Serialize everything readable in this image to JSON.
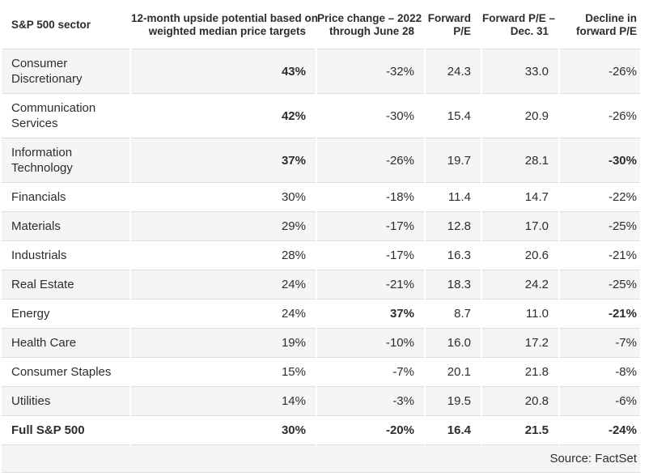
{
  "chart_data": {
    "type": "table",
    "columns": [
      {
        "key": "sector",
        "label": "S&P 500 sector",
        "align": "left"
      },
      {
        "key": "upside",
        "label": "12-month upside potential based on\nweighted median price targets",
        "align": "right"
      },
      {
        "key": "price_change",
        "label": "Price change – 2022\nthrough June 28",
        "align": "right"
      },
      {
        "key": "fwd_pe",
        "label": "Forward\nP/E",
        "align": "right"
      },
      {
        "key": "fwd_pe_dec31",
        "label": "Forward P/E –\nDec. 31",
        "align": "right"
      },
      {
        "key": "decline",
        "label": "Decline in\nforward P/E",
        "align": "right"
      }
    ],
    "rows": [
      {
        "sector": "Consumer Discretionary",
        "upside": "43%",
        "price_change": "-32%",
        "fwd_pe": "24.3",
        "fwd_pe_dec31": "33.0",
        "decline": "-26%",
        "bold": [
          "upside"
        ]
      },
      {
        "sector": "Communication Services",
        "upside": "42%",
        "price_change": "-30%",
        "fwd_pe": "15.4",
        "fwd_pe_dec31": "20.9",
        "decline": "-26%",
        "bold": [
          "upside"
        ]
      },
      {
        "sector": "Information Technology",
        "upside": "37%",
        "price_change": "-26%",
        "fwd_pe": "19.7",
        "fwd_pe_dec31": "28.1",
        "decline": "-30%",
        "bold": [
          "upside",
          "decline"
        ]
      },
      {
        "sector": "Financials",
        "upside": "30%",
        "price_change": "-18%",
        "fwd_pe": "11.4",
        "fwd_pe_dec31": "14.7",
        "decline": "-22%",
        "bold": []
      },
      {
        "sector": "Materials",
        "upside": "29%",
        "price_change": "-17%",
        "fwd_pe": "12.8",
        "fwd_pe_dec31": "17.0",
        "decline": "-25%",
        "bold": []
      },
      {
        "sector": "Industrials",
        "upside": "28%",
        "price_change": "-17%",
        "fwd_pe": "16.3",
        "fwd_pe_dec31": "20.6",
        "decline": "-21%",
        "bold": []
      },
      {
        "sector": "Real Estate",
        "upside": "24%",
        "price_change": "-21%",
        "fwd_pe": "18.3",
        "fwd_pe_dec31": "24.2",
        "decline": "-25%",
        "bold": []
      },
      {
        "sector": "Energy",
        "upside": "24%",
        "price_change": "37%",
        "fwd_pe": "8.7",
        "fwd_pe_dec31": "11.0",
        "decline": "-21%",
        "bold": [
          "price_change",
          "decline"
        ]
      },
      {
        "sector": "Health Care",
        "upside": "19%",
        "price_change": "-10%",
        "fwd_pe": "16.0",
        "fwd_pe_dec31": "17.2",
        "decline": "-7%",
        "bold": []
      },
      {
        "sector": "Consumer Staples",
        "upside": "15%",
        "price_change": "-7%",
        "fwd_pe": "20.1",
        "fwd_pe_dec31": "21.8",
        "decline": "-8%",
        "bold": []
      },
      {
        "sector": "Utilities",
        "upside": "14%",
        "price_change": "-3%",
        "fwd_pe": "19.5",
        "fwd_pe_dec31": "20.8",
        "decline": "-6%",
        "bold": []
      },
      {
        "sector": "Full S&P 500",
        "upside": "30%",
        "price_change": "-20%",
        "fwd_pe": "16.4",
        "fwd_pe_dec31": "21.5",
        "decline": "-24%",
        "bold": [
          "sector",
          "upside",
          "price_change",
          "fwd_pe",
          "fwd_pe_dec31",
          "decline"
        ]
      }
    ],
    "source": "Source: FactSet",
    "layout_hints": {
      "alternating_rows": true,
      "grid": "horizontal-only"
    }
  },
  "colors": {
    "text": "#2d2d2d",
    "border": "#dcdcdc",
    "alt_row_bg": "#f5f5f5",
    "background": "#ffffff"
  }
}
